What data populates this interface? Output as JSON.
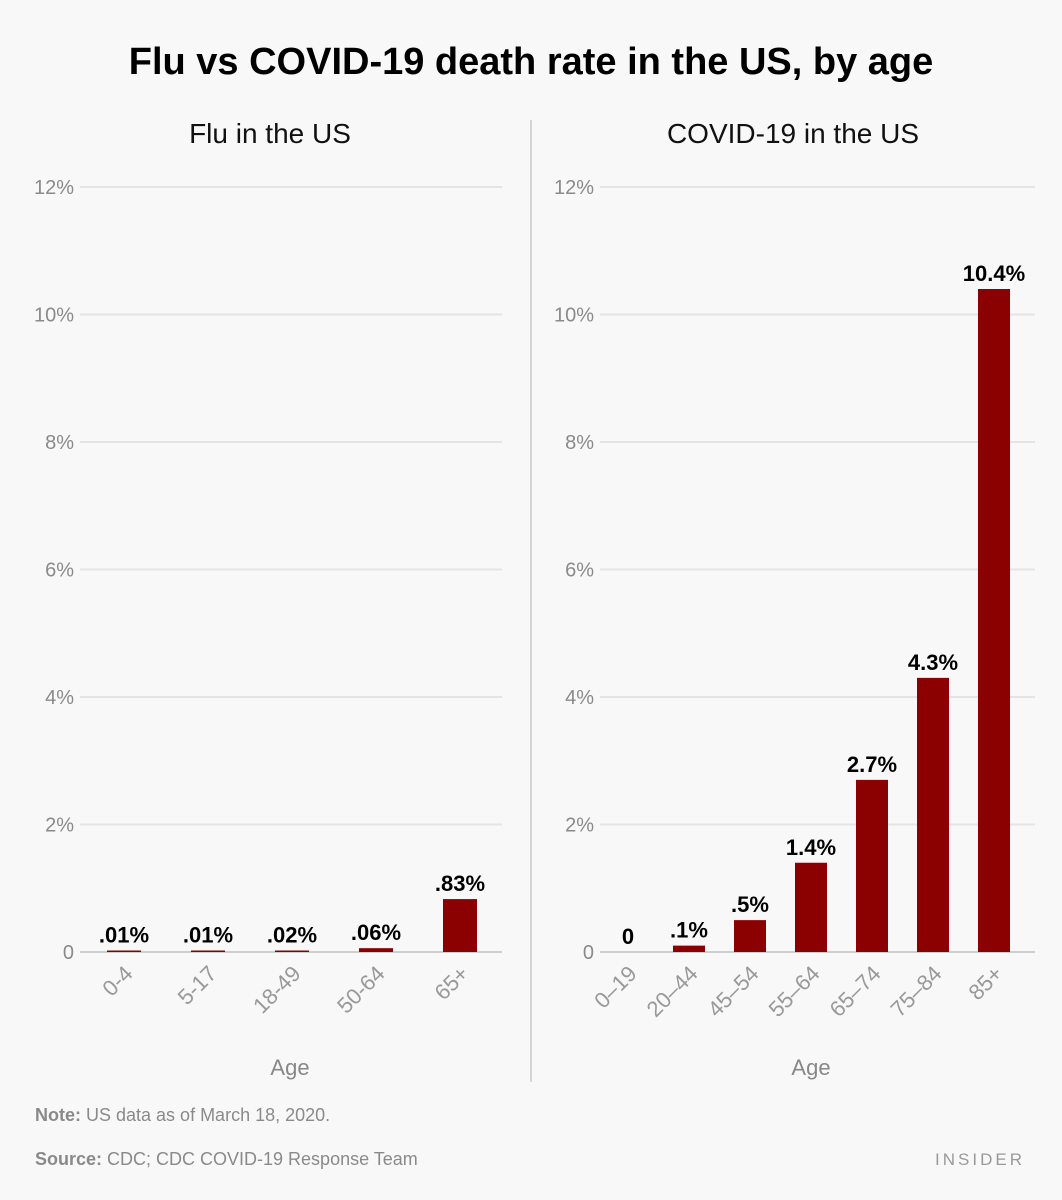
{
  "title": "Flu vs COVID-19 death rate in the US, by age",
  "note_label": "Note:",
  "note_text": " US data as of March 18, 2020.",
  "source_label": "Source:",
  "source_text": " CDC; CDC COVID-19 Response Team",
  "logo": "INSIDER",
  "colors": {
    "bar": "#8b0000",
    "grid": "#e2e2e2",
    "background": "#f8f8f8"
  },
  "chart_data": [
    {
      "type": "bar",
      "title": "Flu in the US",
      "xlabel": "Age",
      "ylabel": "",
      "ylim": [
        0,
        12
      ],
      "yticks": [
        0,
        2,
        4,
        6,
        8,
        10,
        12
      ],
      "ytick_labels": [
        "0",
        "2%",
        "4%",
        "6%",
        "8%",
        "10%",
        "12%"
      ],
      "grid": true,
      "categories": [
        "0-4",
        "5-17",
        "18-49",
        "50-64",
        "65+"
      ],
      "values": [
        0.01,
        0.01,
        0.02,
        0.06,
        0.83
      ],
      "data_labels": [
        ".01%",
        ".01%",
        ".02%",
        ".06%",
        ".83%"
      ]
    },
    {
      "type": "bar",
      "title": "COVID-19 in the US",
      "xlabel": "Age",
      "ylabel": "",
      "ylim": [
        0,
        12
      ],
      "yticks": [
        0,
        2,
        4,
        6,
        8,
        10,
        12
      ],
      "ytick_labels": [
        "0",
        "2%",
        "4%",
        "6%",
        "8%",
        "10%",
        "12%"
      ],
      "grid": true,
      "categories": [
        "0–19",
        "20–44",
        "45–54",
        "55–64",
        "65–74",
        "75–84",
        "85+"
      ],
      "values": [
        0,
        0.1,
        0.5,
        1.4,
        2.7,
        4.3,
        10.4
      ],
      "data_labels": [
        "0",
        ".1%",
        ".5%",
        "1.4%",
        "2.7%",
        "4.3%",
        "10.4%"
      ]
    }
  ]
}
